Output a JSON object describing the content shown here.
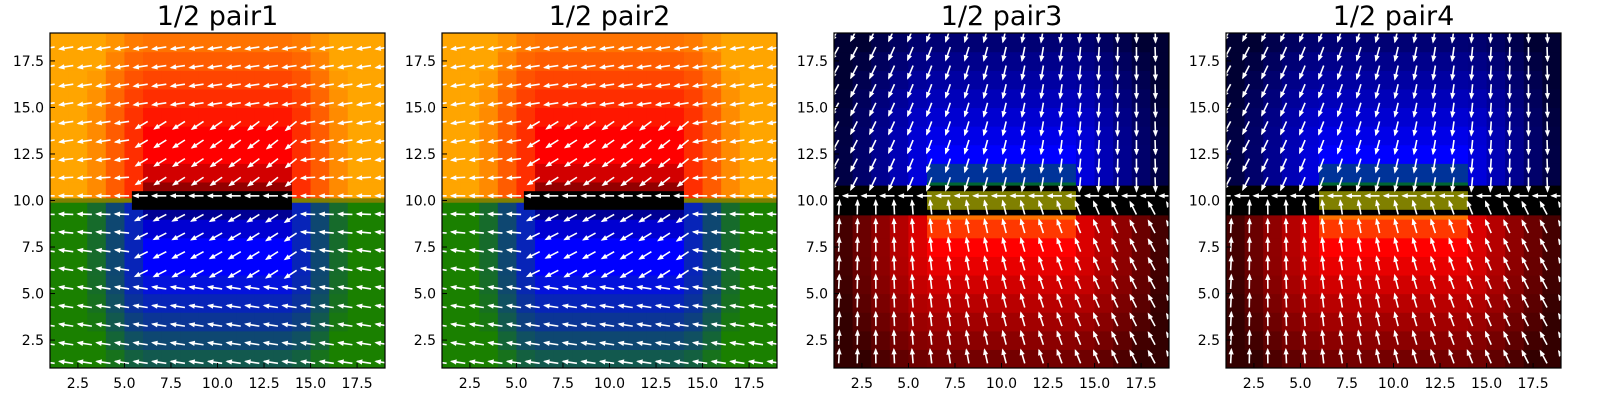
{
  "chart_data": [
    {
      "type": "heatmap",
      "title": "1/2 pair1",
      "variant": "upper-horizontal",
      "xlim": [
        1,
        19
      ],
      "ylim": [
        1,
        19
      ],
      "xticks": [
        2.5,
        5.0,
        7.5,
        10.0,
        12.5,
        15.0,
        17.5
      ],
      "yticks": [
        2.5,
        5.0,
        7.5,
        10.0,
        12.5,
        15.0,
        17.5
      ],
      "xtick_labels": [
        "2.5",
        "5.0",
        "7.5",
        "10.0",
        "12.5",
        "15.0",
        "17.5"
      ],
      "ytick_labels": [
        "2.5",
        "5.0",
        "7.5",
        "10.0",
        "12.5",
        "15.0",
        "17.5"
      ],
      "grid": false,
      "overlay": "white quiver arrows",
      "colors": {
        "upper": "#ff0000",
        "upper_outer": "#ffa500",
        "lower": "#0000ff",
        "lower_outer": "#1a8000",
        "band": "#000000",
        "band_line": "#808000"
      }
    },
    {
      "type": "heatmap",
      "title": "1/2 pair2",
      "variant": "upper-horizontal",
      "xlim": [
        1,
        19
      ],
      "ylim": [
        1,
        19
      ],
      "xticks": [
        2.5,
        5.0,
        7.5,
        10.0,
        12.5,
        15.0,
        17.5
      ],
      "yticks": [
        2.5,
        5.0,
        7.5,
        10.0,
        12.5,
        15.0,
        17.5
      ],
      "xtick_labels": [
        "2.5",
        "5.0",
        "7.5",
        "10.0",
        "12.5",
        "15.0",
        "17.5"
      ],
      "ytick_labels": [
        "2.5",
        "5.0",
        "7.5",
        "10.0",
        "12.5",
        "15.0",
        "17.5"
      ],
      "grid": false,
      "overlay": "white quiver arrows",
      "colors": {
        "upper": "#ff0000",
        "upper_outer": "#ffa500",
        "lower": "#0000ff",
        "lower_outer": "#1a8000",
        "band": "#000000",
        "band_line": "#808000"
      }
    },
    {
      "type": "heatmap",
      "title": "1/2 pair3",
      "variant": "upper-vertical",
      "xlim": [
        1,
        19
      ],
      "ylim": [
        1,
        19
      ],
      "xticks": [
        2.5,
        5.0,
        7.5,
        10.0,
        12.5,
        15.0,
        17.5
      ],
      "yticks": [
        2.5,
        5.0,
        7.5,
        10.0,
        12.5,
        15.0,
        17.5
      ],
      "xtick_labels": [
        "2.5",
        "5.0",
        "7.5",
        "10.0",
        "12.5",
        "15.0",
        "17.5"
      ],
      "ytick_labels": [
        "2.5",
        "5.0",
        "7.5",
        "10.0",
        "12.5",
        "15.0",
        "17.5"
      ],
      "grid": false,
      "overlay": "white quiver arrows",
      "colors": {
        "upper": "#0000ff",
        "upper_outer": "#000033",
        "lower": "#ff0000",
        "lower_outer": "#330000",
        "band": "#000000",
        "band_line": "#808000"
      }
    },
    {
      "type": "heatmap",
      "title": "1/2 pair4",
      "variant": "upper-vertical",
      "xlim": [
        1,
        19
      ],
      "ylim": [
        1,
        19
      ],
      "xticks": [
        2.5,
        5.0,
        7.5,
        10.0,
        12.5,
        15.0,
        17.5
      ],
      "yticks": [
        2.5,
        5.0,
        7.5,
        10.0,
        12.5,
        15.0,
        17.5
      ],
      "xtick_labels": [
        "2.5",
        "5.0",
        "7.5",
        "10.0",
        "12.5",
        "15.0",
        "17.5"
      ],
      "ytick_labels": [
        "2.5",
        "5.0",
        "7.5",
        "10.0",
        "12.5",
        "15.0",
        "17.5"
      ],
      "grid": false,
      "overlay": "white quiver arrows",
      "colors": {
        "upper": "#0000ff",
        "upper_outer": "#000033",
        "lower": "#ff0000",
        "lower_outer": "#330000",
        "band": "#000000",
        "band_line": "#808000"
      }
    }
  ]
}
